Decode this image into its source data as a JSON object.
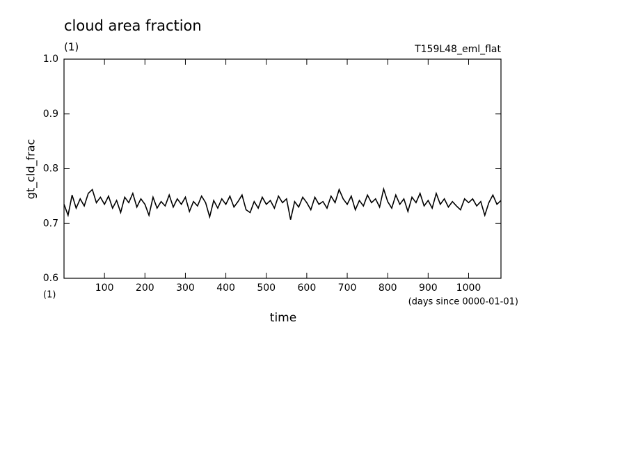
{
  "chart_data": {
    "type": "line",
    "title": "cloud area fraction",
    "subtitle": "(1)",
    "experiment": "T159L48_eml_flat",
    "y_label": "gt_cld_frac",
    "y_unit": "(1)",
    "x_label": "time",
    "x_unit": "(days since 0000-01-01)",
    "xlim": [
      0,
      1080
    ],
    "ylim": [
      0.6,
      1
    ],
    "xticks": [
      100,
      200,
      300,
      400,
      500,
      600,
      700,
      800,
      900,
      1000
    ],
    "yticks": [
      0.6,
      0.7,
      0.8,
      0.9,
      {
        "value": 1,
        "label": "1.0"
      }
    ],
    "x": [
      0,
      10,
      20,
      30,
      40,
      50,
      60,
      70,
      80,
      90,
      100,
      110,
      120,
      130,
      140,
      150,
      160,
      170,
      180,
      190,
      200,
      210,
      220,
      230,
      240,
      250,
      260,
      270,
      280,
      290,
      300,
      310,
      320,
      330,
      340,
      350,
      360,
      370,
      380,
      390,
      400,
      410,
      420,
      430,
      440,
      450,
      460,
      470,
      480,
      490,
      500,
      510,
      520,
      530,
      540,
      550,
      560,
      570,
      580,
      590,
      600,
      610,
      620,
      630,
      640,
      650,
      660,
      670,
      680,
      690,
      700,
      710,
      720,
      730,
      740,
      750,
      760,
      770,
      780,
      790,
      800,
      810,
      820,
      830,
      840,
      850,
      860,
      870,
      880,
      890,
      900,
      910,
      920,
      930,
      940,
      950,
      960,
      970,
      980,
      990,
      1000,
      1010,
      1020,
      1030,
      1040,
      1050,
      1060,
      1070,
      1080
    ],
    "series": [
      {
        "color": "#000000",
        "values": [
          0.735,
          0.715,
          0.752,
          0.728,
          0.745,
          0.732,
          0.755,
          0.762,
          0.738,
          0.748,
          0.735,
          0.75,
          0.728,
          0.742,
          0.72,
          0.748,
          0.738,
          0.755,
          0.73,
          0.745,
          0.735,
          0.715,
          0.748,
          0.728,
          0.74,
          0.732,
          0.752,
          0.73,
          0.745,
          0.735,
          0.748,
          0.722,
          0.74,
          0.732,
          0.75,
          0.738,
          0.712,
          0.742,
          0.728,
          0.745,
          0.735,
          0.75,
          0.73,
          0.74,
          0.752,
          0.725,
          0.72,
          0.74,
          0.728,
          0.748,
          0.735,
          0.742,
          0.728,
          0.75,
          0.738,
          0.745,
          0.707,
          0.74,
          0.73,
          0.748,
          0.738,
          0.725,
          0.748,
          0.735,
          0.74,
          0.728,
          0.75,
          0.738,
          0.762,
          0.745,
          0.735,
          0.75,
          0.725,
          0.742,
          0.732,
          0.752,
          0.738,
          0.745,
          0.73,
          0.763,
          0.74,
          0.728,
          0.752,
          0.735,
          0.745,
          0.722,
          0.748,
          0.738,
          0.755,
          0.732,
          0.742,
          0.728,
          0.755,
          0.735,
          0.745,
          0.73,
          0.74,
          0.732,
          0.725,
          0.745,
          0.738,
          0.745,
          0.732,
          0.74,
          0.715,
          0.738,
          0.752,
          0.735,
          0.742
        ]
      }
    ]
  }
}
